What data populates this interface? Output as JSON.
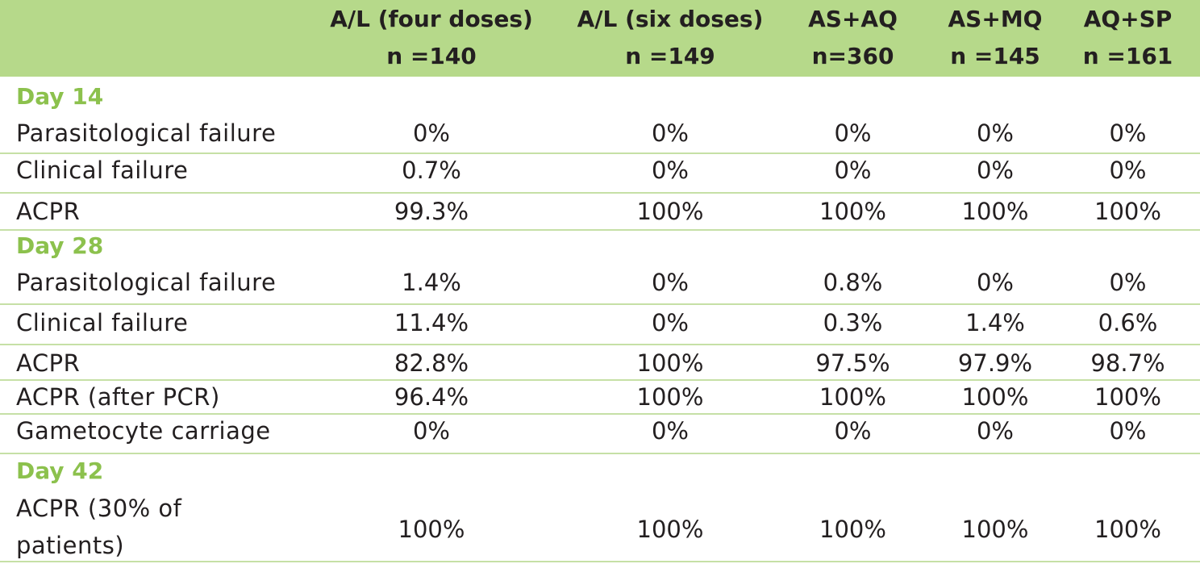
{
  "columns": [
    {
      "line1": "A/L (four doses)",
      "line2": "n =140"
    },
    {
      "line1": "A/L (six doses)",
      "line2": "n =149"
    },
    {
      "line1": "AS+AQ",
      "line2": "n=360"
    },
    {
      "line1": "AS+MQ",
      "line2": "n =145"
    },
    {
      "line1": "AQ+SP",
      "line2": "n =161"
    }
  ],
  "sections": [
    {
      "title": "Day 14",
      "rows": [
        {
          "label": "Parasitological failure",
          "values": [
            "0%",
            "0%",
            "0%",
            "0%",
            "0%"
          ]
        },
        {
          "label": "Clinical failure",
          "values": [
            "0.7%",
            "0%",
            "0%",
            "0%",
            "0%"
          ]
        },
        {
          "label": "ACPR",
          "values": [
            "99.3%",
            "100%",
            "100%",
            "100%",
            "100%"
          ]
        }
      ]
    },
    {
      "title": "Day 28",
      "rows": [
        {
          "label": "Parasitological failure",
          "values": [
            "1.4%",
            "0%",
            "0.8%",
            "0%",
            "0%"
          ]
        },
        {
          "label": "Clinical failure",
          "values": [
            "11.4%",
            "0%",
            "0.3%",
            "1.4%",
            "0.6%"
          ]
        },
        {
          "label": "ACPR",
          "values": [
            "82.8%",
            "100%",
            "97.5%",
            "97.9%",
            "98.7%"
          ]
        },
        {
          "label": "ACPR (after PCR)",
          "values": [
            "96.4%",
            "100%",
            "100%",
            "100%",
            "100%"
          ]
        },
        {
          "label": "Gametocyte carriage",
          "values": [
            "0%",
            "0%",
            "0%",
            "0%",
            "0%"
          ]
        }
      ]
    },
    {
      "title": "Day 42",
      "rows": [
        {
          "label_line1": "ACPR (30% of",
          "label_line2": "patients)",
          "values": [
            "100%",
            "100%",
            "100%",
            "100%",
            "100%"
          ]
        }
      ]
    }
  ],
  "colors": {
    "header_bg": "#b6d98a",
    "section_title": "#8cc14d",
    "rule": "#c6e0a6",
    "text": "#231f20"
  }
}
